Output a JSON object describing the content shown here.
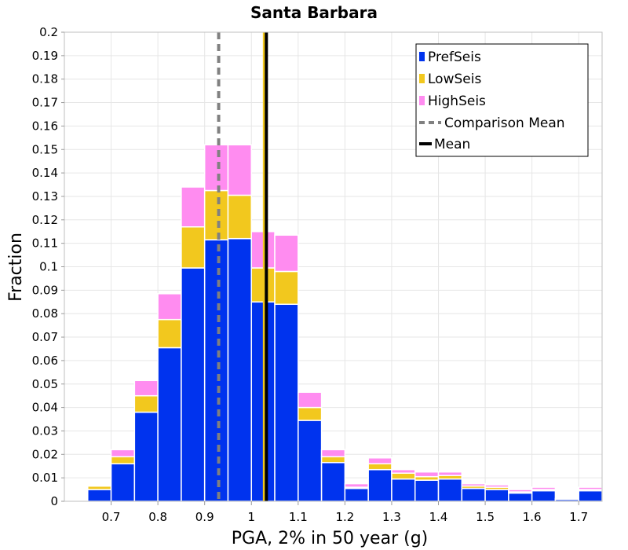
{
  "chart_data": {
    "type": "bar",
    "title": "Santa Barbara",
    "xlabel": "PGA, 2% in 50 year (g)",
    "ylabel": "Fraction",
    "xlim": [
      0.6,
      1.75
    ],
    "ylim": [
      0,
      0.2
    ],
    "bin_width": 0.05,
    "x_ticks": [
      "0.7",
      "0.8",
      "0.9",
      "1",
      "1.1",
      "1.2",
      "1.3",
      "1.4",
      "1.5",
      "1.6",
      "1.7"
    ],
    "y_ticks": [
      "0",
      "0.01",
      "0.02",
      "0.03",
      "0.04",
      "0.05",
      "0.06",
      "0.07",
      "0.08",
      "0.09",
      "0.1",
      "0.11",
      "0.12",
      "0.13",
      "0.14",
      "0.15",
      "0.16",
      "0.17",
      "0.18",
      "0.19",
      "0.2"
    ],
    "grid": true,
    "stacked": true,
    "legend_position": "top-right",
    "bins": [
      0.625,
      0.675,
      0.725,
      0.775,
      0.825,
      0.875,
      0.925,
      0.975,
      1.025,
      1.075,
      1.125,
      1.175,
      1.225,
      1.275,
      1.325,
      1.375,
      1.425,
      1.475,
      1.525,
      1.575,
      1.625,
      1.675,
      1.725
    ],
    "series": [
      {
        "name": "PrefSeis",
        "color": "#0033ee",
        "values": [
          0.0005,
          0.005,
          0.016,
          0.038,
          0.0655,
          0.0995,
          0.1115,
          0.112,
          0.085,
          0.084,
          0.0345,
          0.0165,
          0.0055,
          0.0135,
          0.0095,
          0.009,
          0.0095,
          0.0055,
          0.005,
          0.0035,
          0.0045,
          0.0008,
          0.0045
        ]
      },
      {
        "name": "LowSeis",
        "color": "#f2c81e",
        "values": [
          0,
          0.0015,
          0.003,
          0.007,
          0.012,
          0.0175,
          0.021,
          0.0185,
          0.0145,
          0.014,
          0.0055,
          0.0025,
          0.0005,
          0.0025,
          0.0025,
          0.0015,
          0.0015,
          0.001,
          0.001,
          0.0005,
          0.0005,
          0.0002,
          0.0005
        ]
      },
      {
        "name": "HighSeis",
        "color": "#ff8cf0",
        "values": [
          0,
          0.0005,
          0.003,
          0.0065,
          0.011,
          0.017,
          0.0195,
          0.0215,
          0.0155,
          0.0155,
          0.0065,
          0.003,
          0.0015,
          0.0025,
          0.0015,
          0.002,
          0.0015,
          0.001,
          0.001,
          0.001,
          0.001,
          0.0002,
          0.001
        ]
      }
    ],
    "reference_lines": [
      {
        "name": "Comparison Mean",
        "x": 0.93,
        "color": "#808080",
        "style": "dashed"
      },
      {
        "name": "Mean",
        "x": 1.032,
        "color": "#000000",
        "style": "solid"
      }
    ],
    "extra_vertical_line": {
      "x": 1.027,
      "color": "#f2c81e"
    }
  }
}
